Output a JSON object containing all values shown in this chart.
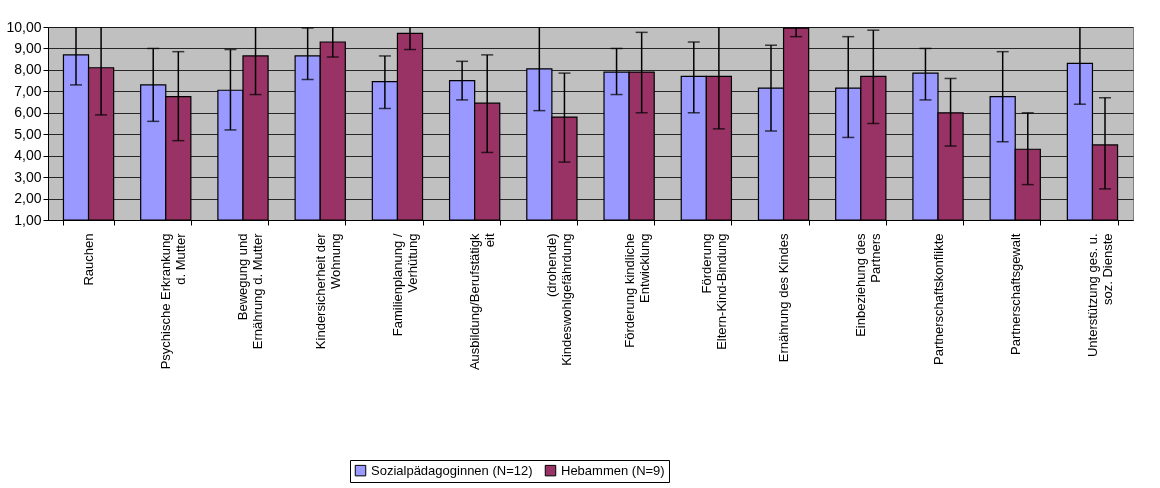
{
  "chart_data": {
    "type": "bar",
    "categories": [
      "Rauchen",
      "Psychische Erkrankung d. Mutter",
      "Bewegung und Ernährung d. Mutter",
      "Kindersicherheit der Wohnung",
      "Familienplanung / Verhütung",
      "Ausbildung/Berufstätigkeit",
      "(drohende) Kindeswohlgefährdung",
      "Förderung kindliche Entwicklung",
      "Förderung Eltern-Kind-Bindung",
      "Ernährung des Kindes",
      "Einbeziehung des Partners",
      "Partnerschaftskonflikte",
      "Partnerschaftsgewalt",
      "Unterstützung ges. u. soz. Dienste"
    ],
    "series": [
      {
        "name": "Sozialpädagoginnen (N=12)",
        "color": "#9999ff",
        "values": [
          8.7,
          7.3,
          7.05,
          8.65,
          7.45,
          7.5,
          8.05,
          7.9,
          7.7,
          7.15,
          7.15,
          7.85,
          6.75,
          8.3
        ],
        "errors": [
          [
            7.3,
            10
          ],
          [
            5.6,
            9.0
          ],
          [
            5.2,
            8.95
          ],
          [
            7.55,
            9.95
          ],
          [
            6.2,
            8.65
          ],
          [
            6.6,
            8.4
          ],
          [
            6.1,
            10
          ],
          [
            6.85,
            9.0
          ],
          [
            6.0,
            9.3
          ],
          [
            5.15,
            9.15
          ],
          [
            4.85,
            9.55
          ],
          [
            6.6,
            9.0
          ],
          [
            4.65,
            8.85
          ],
          [
            6.4,
            10
          ]
        ]
      },
      {
        "name": "Hebammen (N=9)",
        "color": "#993366",
        "values": [
          8.1,
          6.75,
          8.65,
          9.3,
          9.7,
          6.45,
          5.8,
          7.9,
          7.7,
          9.95,
          7.7,
          6.0,
          4.3,
          4.5
        ],
        "errors": [
          [
            5.9,
            10
          ],
          [
            4.7,
            8.85
          ],
          [
            6.85,
            10
          ],
          [
            8.6,
            10
          ],
          [
            8.95,
            10
          ],
          [
            4.15,
            8.7
          ],
          [
            3.7,
            7.85
          ],
          [
            6.0,
            9.75
          ],
          [
            5.25,
            10
          ],
          [
            9.55,
            10
          ],
          [
            5.5,
            9.85
          ],
          [
            4.45,
            7.6
          ],
          [
            2.65,
            6.0
          ],
          [
            2.45,
            6.7
          ]
        ]
      }
    ],
    "ylim": [
      1,
      10
    ],
    "yticks": [
      {
        "value": 1,
        "label": "1,00"
      },
      {
        "value": 2,
        "label": "2,00"
      },
      {
        "value": 3,
        "label": "3,00"
      },
      {
        "value": 4,
        "label": "4,00"
      },
      {
        "value": 5,
        "label": "5,00"
      },
      {
        "value": 6,
        "label": "6,00"
      },
      {
        "value": 7,
        "label": "7,00"
      },
      {
        "value": 8,
        "label": "8,00"
      },
      {
        "value": 9,
        "label": "9,00"
      },
      {
        "value": 10,
        "label": "10,00"
      }
    ],
    "grid": "y",
    "legend": "bottom"
  }
}
